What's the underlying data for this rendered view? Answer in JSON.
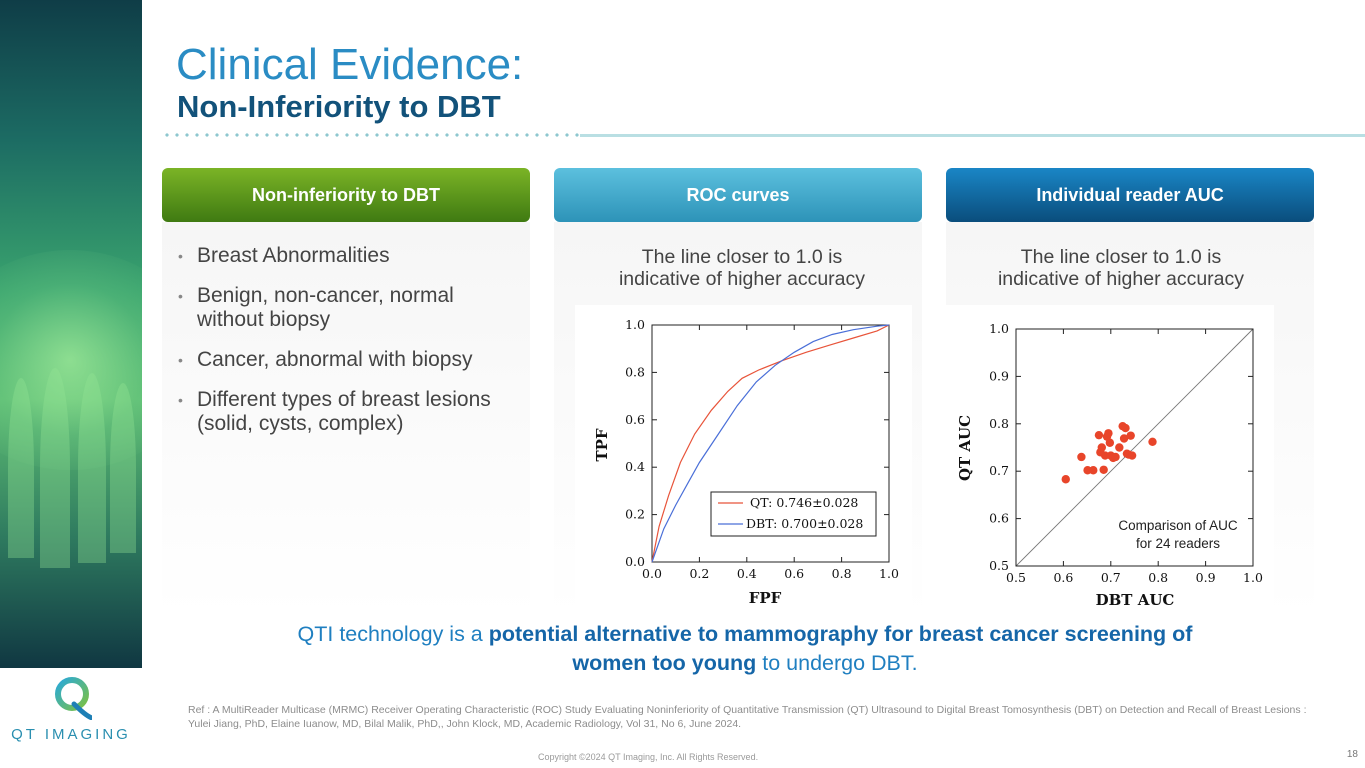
{
  "header": {
    "title": "Clinical Evidence:",
    "subtitle": "Non-Inferiority to DBT"
  },
  "logo": {
    "text": "QT IMAGING"
  },
  "columns": [
    {
      "header": "Non-inferiority to DBT",
      "color": "#5a9a1a"
    },
    {
      "header": "ROC curves",
      "color": "#3aa8cc"
    },
    {
      "header": "Individual reader AUC",
      "color": "#0f64a0"
    }
  ],
  "bullets": [
    "Breast Abnormalities",
    "Benign, non-cancer, normal without biopsy",
    "Cancer, abnormal with biopsy",
    "Different types of breast lesions (solid, cysts, complex)"
  ],
  "captions": {
    "roc": {
      "line1": "The line closer to 1.0 is",
      "line2": "indicative of higher accuracy"
    },
    "auc": {
      "line1": "The line closer to 1.0 is",
      "line2": "indicative of higher accuracy"
    }
  },
  "chart_data": [
    {
      "type": "line",
      "title": "ROC curves",
      "xlabel": "FPF",
      "ylabel": "TPF",
      "xlim": [
        0,
        1
      ],
      "ylim": [
        0,
        1
      ],
      "xticks": [
        "0.0",
        "0.2",
        "0.4",
        "0.6",
        "0.8",
        "1.0"
      ],
      "yticks": [
        "0.0",
        "0.2",
        "0.4",
        "0.6",
        "0.8",
        "1.0"
      ],
      "legend_position": "bottom-right",
      "series": [
        {
          "name": "QT: 0.746±0.028",
          "color": "#e8543a",
          "x": [
            0,
            0.03,
            0.07,
            0.12,
            0.18,
            0.25,
            0.32,
            0.38,
            0.45,
            0.55,
            0.65,
            0.75,
            0.85,
            0.95,
            1.0
          ],
          "y": [
            0,
            0.15,
            0.28,
            0.42,
            0.54,
            0.64,
            0.72,
            0.775,
            0.81,
            0.85,
            0.885,
            0.915,
            0.945,
            0.975,
            1.0
          ]
        },
        {
          "name": "DBT: 0.700±0.028",
          "color": "#4a6fd8",
          "x": [
            0,
            0.05,
            0.1,
            0.15,
            0.2,
            0.28,
            0.36,
            0.44,
            0.52,
            0.6,
            0.68,
            0.76,
            0.85,
            0.95,
            1.0
          ],
          "y": [
            0,
            0.14,
            0.24,
            0.33,
            0.42,
            0.54,
            0.66,
            0.76,
            0.83,
            0.885,
            0.93,
            0.96,
            0.98,
            0.995,
            1.0
          ]
        }
      ]
    },
    {
      "type": "scatter",
      "title": "Individual reader AUC",
      "xlabel": "DBT AUC",
      "ylabel": "QT AUC",
      "xlim": [
        0.5,
        1.0
      ],
      "ylim": [
        0.5,
        1.0
      ],
      "xticks": [
        "0.5",
        "0.6",
        "0.7",
        "0.8",
        "0.9",
        "1.0"
      ],
      "yticks": [
        "0.5",
        "0.6",
        "0.7",
        "0.8",
        "0.9",
        "1.0"
      ],
      "annotation": {
        "line1": "Comparison of  AUC",
        "line2": "for 24 readers"
      },
      "point_color": "#e8452a",
      "reference_line": "y = x",
      "points": [
        {
          "x": 0.605,
          "y": 0.683
        },
        {
          "x": 0.638,
          "y": 0.73
        },
        {
          "x": 0.651,
          "y": 0.702
        },
        {
          "x": 0.663,
          "y": 0.702
        },
        {
          "x": 0.675,
          "y": 0.776
        },
        {
          "x": 0.678,
          "y": 0.74
        },
        {
          "x": 0.681,
          "y": 0.75
        },
        {
          "x": 0.685,
          "y": 0.703
        },
        {
          "x": 0.688,
          "y": 0.733
        },
        {
          "x": 0.692,
          "y": 0.773
        },
        {
          "x": 0.695,
          "y": 0.78
        },
        {
          "x": 0.698,
          "y": 0.76
        },
        {
          "x": 0.7,
          "y": 0.733
        },
        {
          "x": 0.705,
          "y": 0.728
        },
        {
          "x": 0.71,
          "y": 0.73
        },
        {
          "x": 0.718,
          "y": 0.75
        },
        {
          "x": 0.725,
          "y": 0.795
        },
        {
          "x": 0.728,
          "y": 0.769
        },
        {
          "x": 0.731,
          "y": 0.791
        },
        {
          "x": 0.734,
          "y": 0.737
        },
        {
          "x": 0.738,
          "y": 0.735
        },
        {
          "x": 0.742,
          "y": 0.775
        },
        {
          "x": 0.745,
          "y": 0.733
        },
        {
          "x": 0.788,
          "y": 0.762
        }
      ]
    }
  ],
  "statement": {
    "pre": "QTI technology is a ",
    "bold1": "potential alternative to mammography for breast cancer screening of",
    "bold2": "women too young",
    "post": " to undergo DBT."
  },
  "reference": "Ref : A MultiReader Multicase (MRMC) Receiver Operating Characteristic (ROC) Study Evaluating Noninferiority of Quantitative Transmission (QT) Ultrasound to Digital Breast Tomosynthesis (DBT) on Detection and Recall of Breast Lesions : Yulei Jiang, PhD, Elaine Iuanow, MD, Bilal Malik, PhD,, John Klock, MD, Academic Radiology, Vol 31, No 6, June 2024.",
  "copyright": "Copyright ©2024 QT Imaging, Inc. All Rights Reserved.",
  "page_number": "18"
}
